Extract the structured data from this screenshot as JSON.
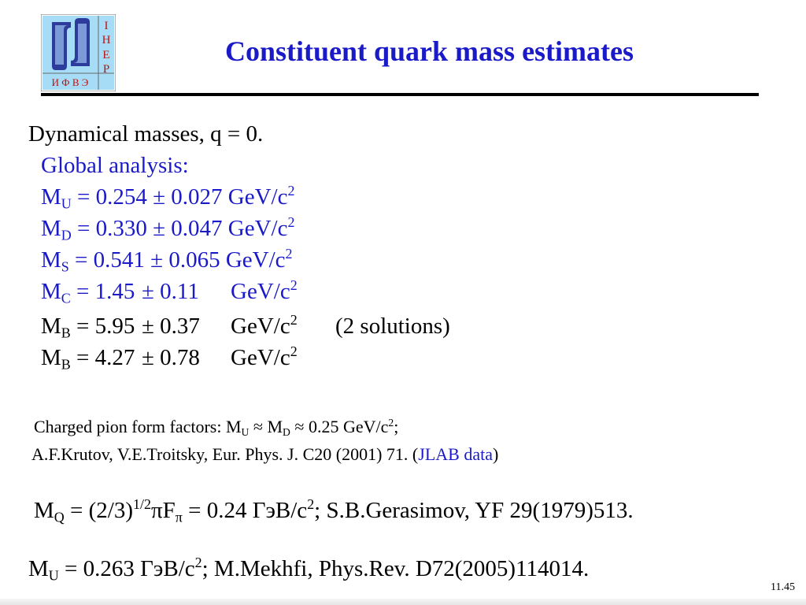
{
  "logo": {
    "letters": [
      "I",
      "H",
      "E",
      "P"
    ],
    "cyrillic": "И Ф В Э"
  },
  "title": "Constituent quark mass estimates",
  "dyn": {
    "heading": "Dynamical masses, q = 0.",
    "global": "Global analysis:"
  },
  "masses": [
    {
      "M": "M",
      "sub": "U",
      "val": "= 0.254 ± 0.027 GeV/c",
      "sup": "2",
      "note": ""
    },
    {
      "M": "M",
      "sub": "D",
      "val": "= 0.330 ± 0.047 GeV/c",
      "sup": "2",
      "note": ""
    },
    {
      "M": "M",
      "sub": "S",
      "val": "= 0.541 ± 0.065 GeV/c",
      "sup": "2",
      "note": ""
    },
    {
      "M": "M",
      "sub": "C",
      "val": "= 1.45",
      "err": "± 0.11",
      "unit": "GeV/c",
      "sup": "2",
      "note": ""
    },
    {
      "M": "M",
      "sub": "B",
      "val": "= 5.95",
      "err": "± 0.37",
      "unit": "GeV/c",
      "sup": "2",
      "note": "(2 solutions)"
    },
    {
      "M": "M",
      "sub": "B",
      "val": "= 4.27",
      "err": "± 0.78",
      "unit": "GeV/c",
      "sup": "2",
      "note": ""
    }
  ],
  "pion": {
    "prefix": "Charged pion form factors: M",
    "sub1": "U",
    "mid": " ≈ M",
    "sub2": "D",
    "rest": " ≈ 0.25 GeV/c",
    "sup": "2",
    "end": ";",
    "ref_text": "A.F.Krutov, V.E.Troitsky, Eur. Phys. J. C20 (2001) 71. (",
    "ref_link": "JLAB data",
    "ref_close": ")"
  },
  "mq": {
    "M": "M",
    "sub": "Q",
    "a": " = (2/3)",
    "sup1": "1/2",
    "b": "πF",
    "subpi": "π",
    "c": " = 0.24 ГэВ/c",
    "sup2": "2",
    "d": ";   S.B.Gerasimov, YF 29(1979)513."
  },
  "mu": {
    "M": "M",
    "sub": "U",
    "a": " = 0.263 ГэВ/c",
    "sup": "2",
    "b": ";    M.Mekhfi, Phys.Rev. D72(2005)114014."
  },
  "slide_number": "11.45"
}
